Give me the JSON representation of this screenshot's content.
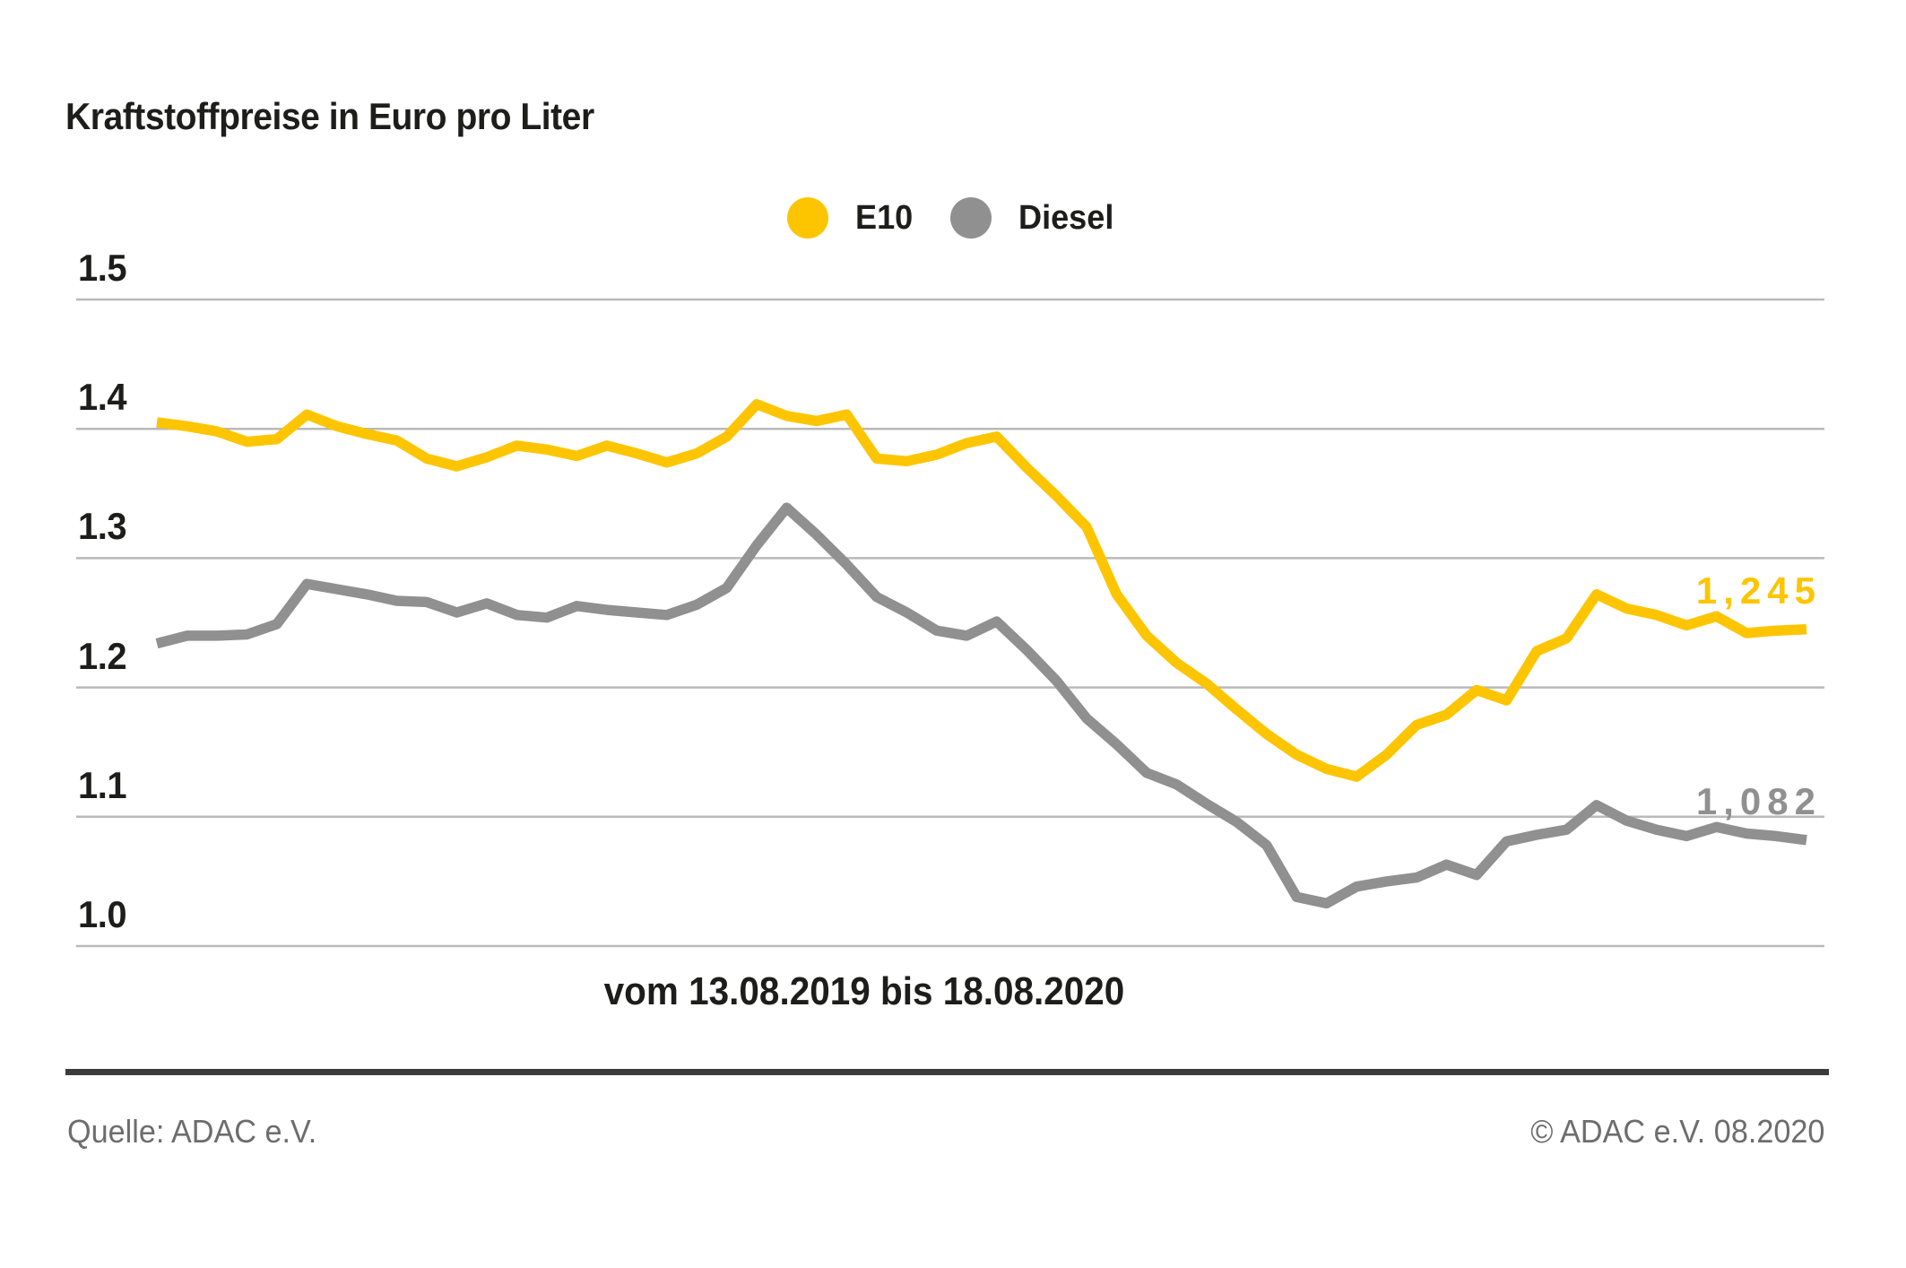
{
  "title": "Kraftstoffpreise in Euro pro Liter",
  "legend": {
    "items": [
      {
        "label": "E10",
        "color": "#fdc500"
      },
      {
        "label": "Diesel",
        "color": "#909090"
      }
    ]
  },
  "chart_data": {
    "type": "line",
    "title": "Kraftstoffpreise in Euro pro Liter",
    "xlabel": "vom 13.08.2019 bis 18.08.2020",
    "ylabel": "Euro pro Liter",
    "ylim": [
      0.97,
      1.55
    ],
    "grid": true,
    "legend_position": "top-center",
    "gridline_color": "#b9b9b9",
    "y_ticks": [
      {
        "label": "1.0",
        "value": 1.0
      },
      {
        "label": "1.1",
        "value": 1.1
      },
      {
        "label": "1.2",
        "value": 1.2
      },
      {
        "label": "1.3",
        "value": 1.3
      },
      {
        "label": "1.4",
        "value": 1.4
      },
      {
        "label": "1.5",
        "value": 1.5
      }
    ],
    "x_range_start": "13.08.2019",
    "x_range_end": "18.08.2020",
    "series": [
      {
        "name": "E10",
        "color": "#fdc500",
        "end_label": "1,245",
        "end_value": 1.245,
        "values": [
          1.405,
          1.402,
          1.398,
          1.39,
          1.392,
          1.411,
          1.402,
          1.396,
          1.391,
          1.377,
          1.371,
          1.378,
          1.387,
          1.384,
          1.379,
          1.387,
          1.381,
          1.374,
          1.381,
          1.394,
          1.419,
          1.41,
          1.406,
          1.411,
          1.377,
          1.375,
          1.38,
          1.389,
          1.394,
          1.37,
          1.348,
          1.324,
          1.272,
          1.24,
          1.219,
          1.203,
          1.183,
          1.164,
          1.148,
          1.137,
          1.131,
          1.148,
          1.171,
          1.179,
          1.198,
          1.19,
          1.228,
          1.238,
          1.272,
          1.261,
          1.256,
          1.248,
          1.255,
          1.242,
          1.244,
          1.245
        ]
      },
      {
        "name": "Diesel",
        "color": "#909090",
        "end_label": "1,082",
        "end_value": 1.082,
        "values": [
          1.234,
          1.24,
          1.24,
          1.241,
          1.249,
          1.28,
          1.276,
          1.272,
          1.267,
          1.266,
          1.258,
          1.265,
          1.256,
          1.254,
          1.263,
          1.26,
          1.258,
          1.256,
          1.264,
          1.277,
          1.31,
          1.339,
          1.318,
          1.295,
          1.27,
          1.258,
          1.244,
          1.24,
          1.251,
          1.229,
          1.205,
          1.176,
          1.156,
          1.134,
          1.125,
          1.11,
          1.096,
          1.078,
          1.038,
          1.033,
          1.046,
          1.05,
          1.053,
          1.063,
          1.055,
          1.081,
          1.086,
          1.09,
          1.109,
          1.097,
          1.09,
          1.085,
          1.092,
          1.087,
          1.085,
          1.082
        ]
      }
    ]
  },
  "period_label": "vom 13.08.2019 bis 18.08.2020",
  "footer": {
    "source": "Quelle: ADAC e.V.",
    "copyright": "© ADAC e.V. 08.2020"
  }
}
